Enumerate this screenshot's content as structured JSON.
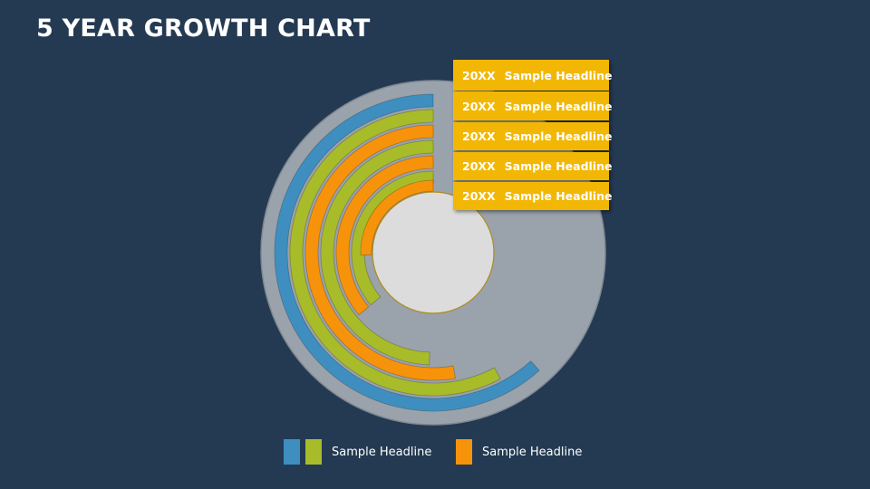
{
  "title": "5 YEAR GROWTH CHART",
  "colors": {
    "background": "#243a52",
    "disc": "#9aa2ab",
    "center": "#dcdcdc",
    "blue": "#3e8fc0",
    "green": "#a8bc2a",
    "orange": "#f7930a",
    "label_bg": "#f2b705"
  },
  "rings": [
    {
      "color": "blue"
    },
    {
      "color": "green"
    },
    {
      "color": "orange"
    },
    {
      "color": "green"
    },
    {
      "color": "orange"
    },
    {
      "color": "green"
    },
    {
      "color": "orange"
    }
  ],
  "labels": [
    {
      "year": "20XX",
      "headline": "Sample Headline"
    },
    {
      "year": "20XX",
      "headline": "Sample Headline"
    },
    {
      "year": "20XX",
      "headline": "Sample Headline"
    },
    {
      "year": "20XX",
      "headline": "Sample Headline"
    },
    {
      "year": "20XX",
      "headline": "Sample Headline"
    }
  ],
  "legend": [
    {
      "colors": [
        "blue",
        "green"
      ],
      "text": "Sample Headline"
    },
    {
      "colors": [
        "orange"
      ],
      "text": "Sample Headline"
    }
  ]
}
